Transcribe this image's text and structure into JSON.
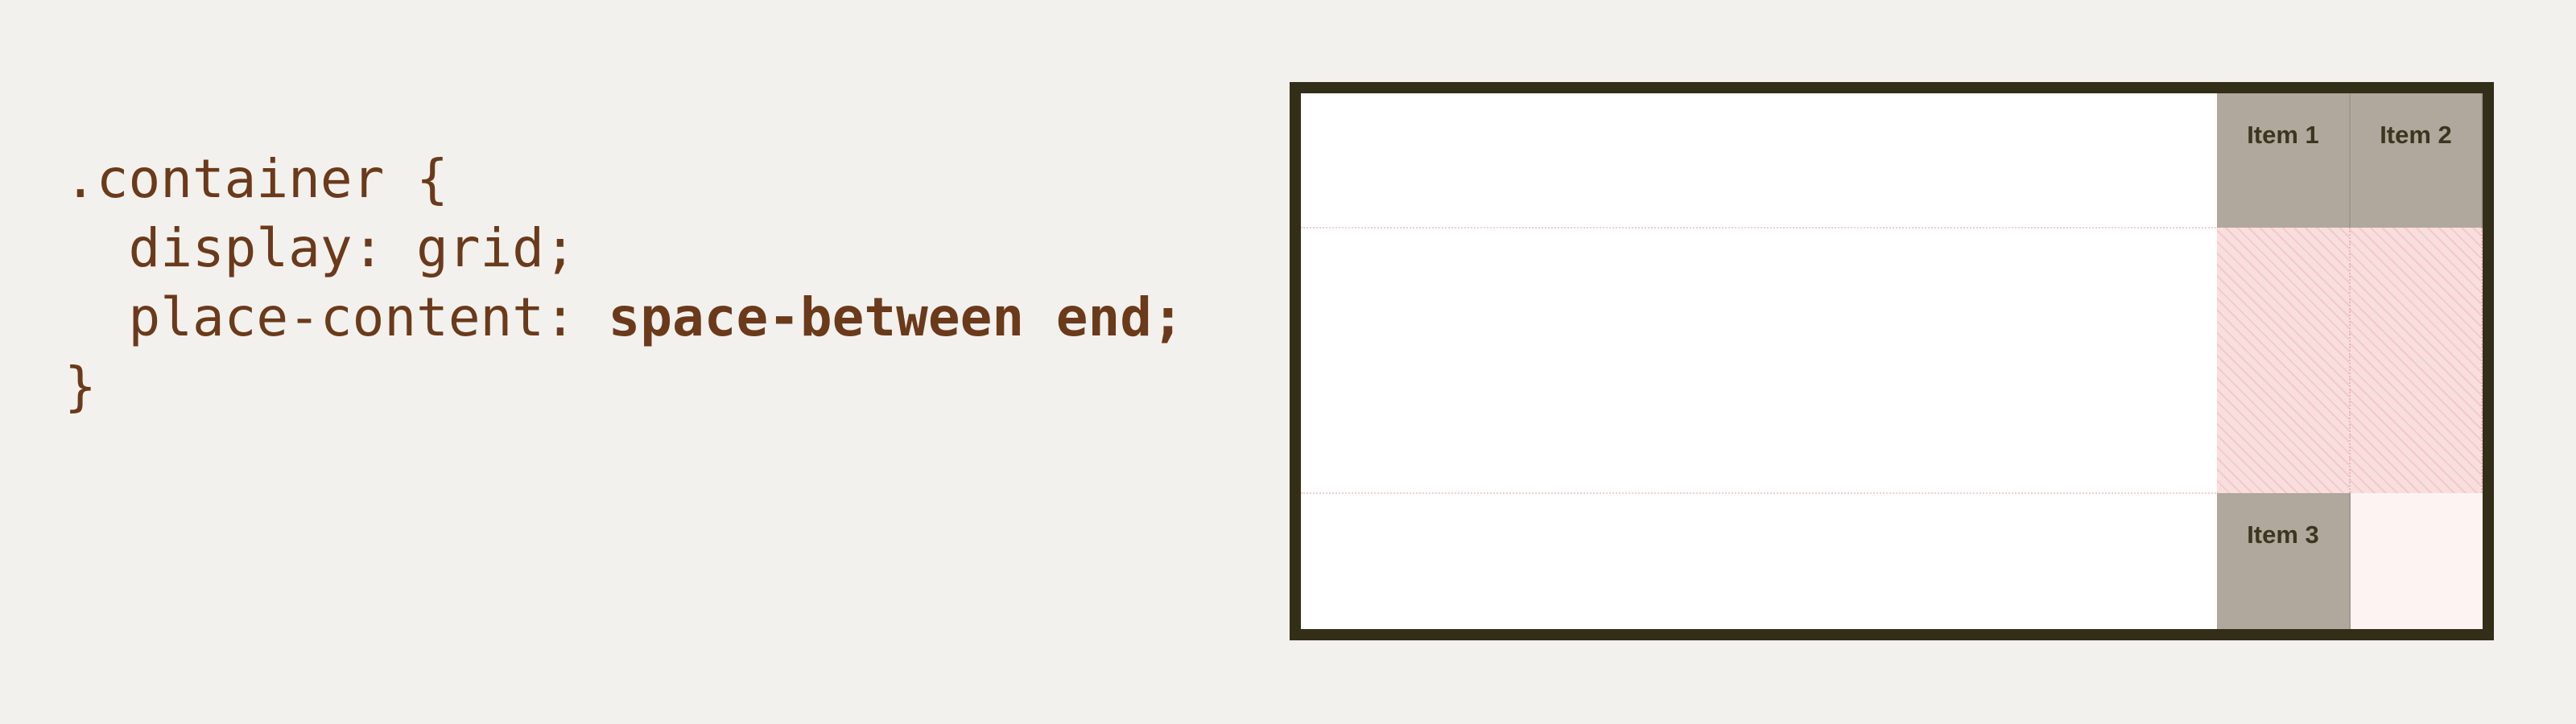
{
  "code": {
    "lines": [
      [
        {
          "text": ".container {",
          "bold": false
        }
      ],
      [
        {
          "text": "  display: grid;",
          "bold": false
        }
      ],
      [
        {
          "text": "  place-content: ",
          "bold": false
        },
        {
          "text": "space-between end;",
          "bold": true
        }
      ],
      [
        {
          "text": "}",
          "bold": false
        }
      ]
    ]
  },
  "grid": {
    "items": [
      "Item 1",
      "Item 2",
      "Item 3"
    ]
  }
}
